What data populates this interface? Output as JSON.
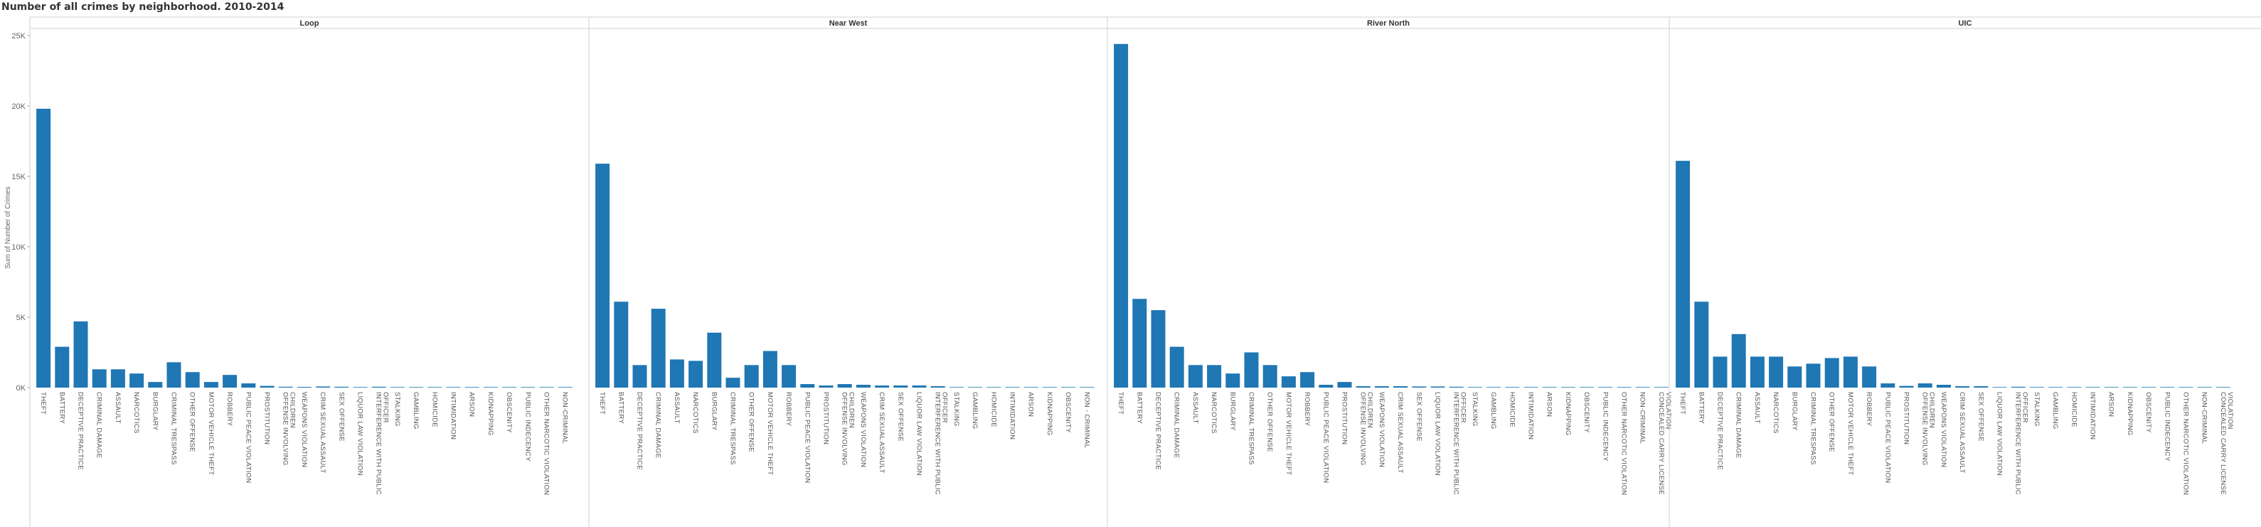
{
  "chart_data": {
    "type": "bar",
    "title": "Number of all crimes by neighborhood. 2010-2014",
    "ylabel": "Sum of Number of Crimes",
    "ylim": [
      0,
      25500
    ],
    "yticks": [
      {
        "value": 0,
        "label": "0K"
      },
      {
        "value": 5000,
        "label": "5K"
      },
      {
        "value": 10000,
        "label": "10K"
      },
      {
        "value": 15000,
        "label": "15K"
      },
      {
        "value": 20000,
        "label": "20K"
      },
      {
        "value": 25000,
        "label": "25K"
      }
    ],
    "color": "#1f77b4",
    "grid": false,
    "panels": [
      {
        "name": "Loop",
        "categories": [
          "THEFT",
          "BATTERY",
          "DECEPTIVE PRACTICE",
          "CRIMINAL DAMAGE",
          "ASSAULT",
          "NARCOTICS",
          "BURGLARY",
          "CRIMINAL TRESPASS",
          "OTHER OFFENSE",
          "MOTOR VEHICLE THEFT",
          "ROBBERY",
          "PUBLIC PEACE VIOLATION",
          "PROSTITUTION",
          "OFFENSE INVOLVING CHILDREN",
          "WEAPONS VIOLATION",
          "CRIM SEXUAL ASSAULT",
          "SEX OFFENSE",
          "LIQUOR LAW VIOLATION",
          "INTERFERENCE WITH PUBLIC OFFICER",
          "STALKING",
          "GAMBLING",
          "HOMICIDE",
          "INTIMIDATION",
          "ARSON",
          "KIDNAPPING",
          "OBSCENITY",
          "PUBLIC INDECENCY",
          "OTHER NARCOTIC VIOLATION",
          "NON-CRIMINAL"
        ],
        "values": [
          19800,
          2900,
          4700,
          1300,
          1300,
          1000,
          400,
          1800,
          1100,
          400,
          900,
          300,
          120,
          60,
          50,
          80,
          60,
          40,
          60,
          40,
          15,
          10,
          40,
          5,
          10,
          5,
          5,
          5,
          5
        ]
      },
      {
        "name": "Near West",
        "categories": [
          "THEFT",
          "BATTERY",
          "DECEPTIVE PRACTICE",
          "CRIMINAL DAMAGE",
          "ASSAULT",
          "NARCOTICS",
          "BURGLARY",
          "CRIMINAL TRESPASS",
          "OTHER OFFENSE",
          "MOTOR VEHICLE THEFT",
          "ROBBERY",
          "PUBLIC PEACE VIOLATION",
          "PROSTITUTION",
          "OFFENSE INVOLVING CHILDREN",
          "WEAPONS VIOLATION",
          "CRIM SEXUAL ASSAULT",
          "SEX OFFENSE",
          "LIQUOR LAW VIOLATION",
          "INTERFERENCE WITH PUBLIC OFFICER",
          "STALKING",
          "GAMBLING",
          "HOMICIDE",
          "INTIMIDATION",
          "ARSON",
          "KIDNAPPING",
          "OBSCENITY",
          "NON - CRIMINAL"
        ],
        "values": [
          15900,
          6100,
          1600,
          5600,
          2000,
          1900,
          3900,
          700,
          1600,
          2600,
          1600,
          250,
          150,
          250,
          200,
          150,
          150,
          150,
          100,
          30,
          30,
          20,
          15,
          40,
          10,
          5,
          5
        ]
      },
      {
        "name": "River North",
        "categories": [
          "THEFT",
          "BATTERY",
          "DECEPTIVE PRACTICE",
          "CRIMINAL DAMAGE",
          "ASSAULT",
          "NARCOTICS",
          "BURGLARY",
          "CRIMINAL TRESPASS",
          "OTHER OFFENSE",
          "MOTOR VEHICLE THEFT",
          "ROBBERY",
          "PUBLIC PEACE VIOLATION",
          "PROSTITUTION",
          "OFFENSE INVOLVING CHILDREN",
          "WEAPONS VIOLATION",
          "CRIM SEXUAL ASSAULT",
          "SEX OFFENSE",
          "LIQUOR LAW VIOLATION",
          "INTERFERENCE WITH PUBLIC OFFICER",
          "STALKING",
          "GAMBLING",
          "HOMICIDE",
          "INTIMIDATION",
          "ARSON",
          "KIDNAPPING",
          "OBSCENITY",
          "PUBLIC INDECENCY",
          "OTHER NARCOTIC VIOLATION",
          "NON-CRIMINAL",
          "CONCEALED CARRY LICENSE VIOLATION"
        ],
        "values": [
          24400,
          6300,
          5500,
          2900,
          1600,
          1600,
          1000,
          2500,
          1600,
          800,
          1100,
          200,
          400,
          100,
          100,
          100,
          80,
          80,
          60,
          40,
          20,
          15,
          15,
          10,
          10,
          5,
          5,
          5,
          5,
          5
        ]
      },
      {
        "name": "UIC",
        "categories": [
          "THEFT",
          "BATTERY",
          "DECEPTIVE PRACTICE",
          "CRIMINAL DAMAGE",
          "ASSAULT",
          "NARCOTICS",
          "BURGLARY",
          "CRIMINAL TRESPASS",
          "OTHER OFFENSE",
          "MOTOR VEHICLE THEFT",
          "ROBBERY",
          "PUBLIC PEACE VIOLATION",
          "PROSTITUTION",
          "OFFENSE INVOLVING CHILDREN",
          "WEAPONS VIOLATION",
          "CRIM SEXUAL ASSAULT",
          "SEX OFFENSE",
          "LIQUOR LAW VIOLATION",
          "INTERFERENCE WITH PUBLIC OFFICER",
          "STALKING",
          "GAMBLING",
          "HOMICIDE",
          "INTIMIDATION",
          "ARSON",
          "KIDNAPPING",
          "OBSCENITY",
          "PUBLIC INDECENCY",
          "OTHER NARCOTIC VIOLATION",
          "NON-CRIMINAL",
          "CONCEALED CARRY LICENSE VIOLATION"
        ],
        "values": [
          16100,
          6100,
          2200,
          3800,
          2200,
          2200,
          1500,
          1700,
          2100,
          2200,
          1500,
          300,
          120,
          300,
          200,
          100,
          100,
          40,
          60,
          30,
          20,
          15,
          10,
          10,
          5,
          5,
          5,
          5,
          5,
          5
        ]
      }
    ]
  }
}
